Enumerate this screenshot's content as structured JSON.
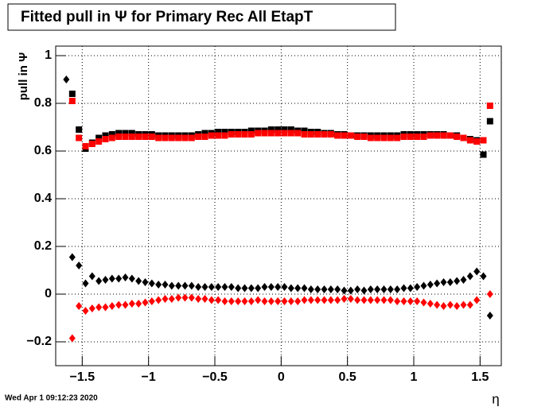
{
  "chart_data": {
    "type": "scatter",
    "title": "Fitted pull in  Ψ  for Primary Rec All EtapT",
    "ylabel": "pull in  Ψ",
    "xlabel": "η",
    "date": "Wed Apr  1 09:12:23 2020",
    "xlim": [
      -1.7,
      1.66
    ],
    "ylim": [
      -0.3,
      1.04
    ],
    "xticks": [
      {
        "value": -1.5,
        "label": "−1.5"
      },
      {
        "value": -1,
        "label": "−1"
      },
      {
        "value": -0.5,
        "label": "−0.5"
      },
      0,
      0.5,
      1,
      1.5
    ],
    "yticks": [
      {
        "value": -0.2,
        "label": "−0.2"
      },
      0,
      0.2,
      0.4,
      0.6,
      0.8,
      1
    ],
    "grid": true,
    "x": [
      -1.575,
      -1.525,
      -1.475,
      -1.425,
      -1.375,
      -1.325,
      -1.275,
      -1.225,
      -1.175,
      -1.125,
      -1.075,
      -1.025,
      -0.975,
      -0.925,
      -0.875,
      -0.825,
      -0.775,
      -0.725,
      -0.675,
      -0.625,
      -0.575,
      -0.525,
      -0.475,
      -0.425,
      -0.375,
      -0.325,
      -0.275,
      -0.225,
      -0.175,
      -0.125,
      -0.075,
      -0.025,
      0.025,
      0.075,
      0.125,
      0.175,
      0.225,
      0.275,
      0.325,
      0.375,
      0.425,
      0.475,
      0.525,
      0.575,
      0.625,
      0.675,
      0.725,
      0.775,
      0.825,
      0.875,
      0.925,
      0.975,
      1.025,
      1.075,
      1.125,
      1.175,
      1.225,
      1.275,
      1.325,
      1.375,
      1.425,
      1.475,
      1.525,
      1.575
    ],
    "series": [
      {
        "color": "#000000",
        "marker": "square",
        "values": [
          0.84,
          0.69,
          0.61,
          0.635,
          0.655,
          0.665,
          0.67,
          0.675,
          0.675,
          0.675,
          0.67,
          0.67,
          0.67,
          0.665,
          0.665,
          0.665,
          0.665,
          0.665,
          0.665,
          0.67,
          0.675,
          0.675,
          0.68,
          0.68,
          0.68,
          0.68,
          0.68,
          0.685,
          0.685,
          0.685,
          0.69,
          0.69,
          0.69,
          0.69,
          0.685,
          0.685,
          0.68,
          0.68,
          0.675,
          0.675,
          0.67,
          0.67,
          0.665,
          0.665,
          0.665,
          0.665,
          0.665,
          0.665,
          0.665,
          0.665,
          0.67,
          0.67,
          0.67,
          0.67,
          0.67,
          0.67,
          0.67,
          0.665,
          0.665,
          0.655,
          0.65,
          0.645,
          0.585,
          0.725
        ]
      },
      {
        "color": "#ff0000",
        "marker": "square",
        "values": [
          0.81,
          0.655,
          0.62,
          0.63,
          0.64,
          0.65,
          0.655,
          0.66,
          0.66,
          0.66,
          0.66,
          0.66,
          0.66,
          0.655,
          0.655,
          0.655,
          0.655,
          0.655,
          0.655,
          0.66,
          0.66,
          0.665,
          0.665,
          0.665,
          0.67,
          0.67,
          0.67,
          0.67,
          0.675,
          0.675,
          0.675,
          0.675,
          0.675,
          0.675,
          0.675,
          0.67,
          0.67,
          0.67,
          0.67,
          0.67,
          0.665,
          0.665,
          0.665,
          0.66,
          0.66,
          0.655,
          0.655,
          0.655,
          0.655,
          0.655,
          0.66,
          0.66,
          0.66,
          0.66,
          0.665,
          0.665,
          0.665,
          0.665,
          0.66,
          0.655,
          0.645,
          0.64,
          0.645,
          0.79
        ]
      },
      {
        "color": "#000000",
        "marker": "diamond",
        "values": [
          0.155,
          0.12,
          0.045,
          0.075,
          0.055,
          0.06,
          0.065,
          0.065,
          0.07,
          0.065,
          0.055,
          0.05,
          0.045,
          0.04,
          0.04,
          0.035,
          0.035,
          0.035,
          0.035,
          0.03,
          0.03,
          0.03,
          0.03,
          0.03,
          0.03,
          0.025,
          0.025,
          0.025,
          0.025,
          0.03,
          0.03,
          0.03,
          0.03,
          0.025,
          0.025,
          0.025,
          0.02,
          0.02,
          0.02,
          0.02,
          0.02,
          0.015,
          0.015,
          0.02,
          0.015,
          0.02,
          0.02,
          0.02,
          0.02,
          0.02,
          0.025,
          0.025,
          0.03,
          0.035,
          0.04,
          0.045,
          0.05,
          0.05,
          0.055,
          0.06,
          0.075,
          0.095,
          0.075,
          -0.09
        ]
      },
      {
        "color": "#ff0000",
        "marker": "diamond",
        "values": [
          -0.185,
          -0.05,
          -0.07,
          -0.06,
          -0.055,
          -0.055,
          -0.05,
          -0.045,
          -0.045,
          -0.04,
          -0.04,
          -0.035,
          -0.03,
          -0.025,
          -0.02,
          -0.02,
          -0.015,
          -0.015,
          -0.015,
          -0.02,
          -0.02,
          -0.025,
          -0.025,
          -0.03,
          -0.03,
          -0.03,
          -0.03,
          -0.03,
          -0.025,
          -0.03,
          -0.03,
          -0.03,
          -0.03,
          -0.03,
          -0.03,
          -0.025,
          -0.025,
          -0.025,
          -0.025,
          -0.025,
          -0.025,
          -0.02,
          -0.02,
          -0.025,
          -0.025,
          -0.025,
          -0.025,
          -0.025,
          -0.025,
          -0.03,
          -0.03,
          -0.03,
          -0.03,
          -0.035,
          -0.04,
          -0.045,
          -0.05,
          -0.045,
          -0.05,
          -0.045,
          -0.045,
          -0.025,
          null,
          0
        ]
      },
      {
        "color": "#000000",
        "marker": "diamond",
        "x": [
          -1.62
        ],
        "values": [
          0.9
        ]
      }
    ]
  }
}
